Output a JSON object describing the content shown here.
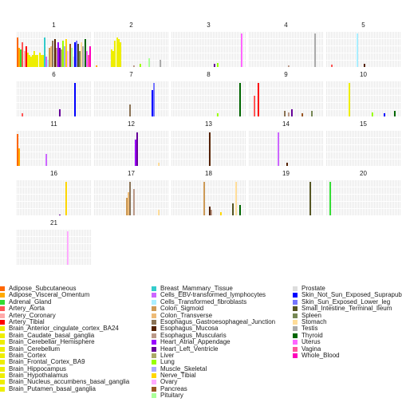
{
  "chart_data": {
    "type": "bar",
    "facets": [
      {
        "title": "1",
        "bars": [
          {
            "x": 1,
            "tissue": "Adipose_Subcutaneous",
            "value": 0.85
          },
          {
            "x": 2,
            "tissue": "Adipose_Visceral_Omentum",
            "value": 0.55
          },
          {
            "x": 3,
            "tissue": "Adrenal_Gland",
            "value": 0.5
          },
          {
            "x": 4,
            "tissue": "Artery_Aorta",
            "value": 0.7
          },
          {
            "x": 5,
            "tissue": "Artery_Coronary",
            "value": 0.45
          },
          {
            "x": 6,
            "tissue": "Artery_Tibial",
            "value": 0.6
          },
          {
            "x": 7,
            "tissue": "Brain_Anterior_cingulate_cortex_BA24",
            "value": 0.4
          },
          {
            "x": 8,
            "tissue": "Brain_Caudate_basal_ganglia",
            "value": 0.35
          },
          {
            "x": 9,
            "tissue": "Brain_Cerebellar_Hemisphere",
            "value": 0.3
          },
          {
            "x": 10,
            "tissue": "Brain_Cerebellum",
            "value": 0.35
          },
          {
            "x": 11,
            "tissue": "Brain_Cortex",
            "value": 0.45
          },
          {
            "x": 12,
            "tissue": "Brain_Frontal_Cortex_BA9",
            "value": 0.35
          },
          {
            "x": 13,
            "tissue": "Brain_Hippocampus",
            "value": 0.35
          },
          {
            "x": 14,
            "tissue": "Brain_Hypothalamus",
            "value": 0.4
          },
          {
            "x": 15,
            "tissue": "Brain_Nucleus_accumbens_basal_ganglia",
            "value": 0.35
          },
          {
            "x": 16,
            "tissue": "Brain_Putamen_basal_ganglia",
            "value": 0.35
          },
          {
            "x": 17,
            "tissue": "Breast_Mammary_Tissue",
            "value": 0.85
          },
          {
            "x": 18,
            "tissue": "Cells_EBV-transformed_lymphocytes",
            "value": 0.3
          },
          {
            "x": 19,
            "tissue": "Cells_Transformed_fibroblasts",
            "value": 0.2
          },
          {
            "x": 20,
            "tissue": "Colon_Sigmoid",
            "value": 0.55
          },
          {
            "x": 21,
            "tissue": "Colon_Transverse",
            "value": 0.6
          },
          {
            "x": 22,
            "tissue": "Esophagus_Gastroesophageal_Junction",
            "value": 0.75
          },
          {
            "x": 23,
            "tissue": "Esophagus_Mucosa",
            "value": 0.8
          },
          {
            "x": 24,
            "tissue": "Esophagus_Muscularis",
            "value": 0.55
          },
          {
            "x": 25,
            "tissue": "Heart_Atrial_Appendage",
            "value": 0.7
          },
          {
            "x": 26,
            "tissue": "Heart_Left_Ventricle",
            "value": 0.55
          },
          {
            "x": 27,
            "tissue": "Liver",
            "value": 0.5
          },
          {
            "x": 28,
            "tissue": "Lung",
            "value": 0.75
          },
          {
            "x": 29,
            "tissue": "Muscle_Skeletal",
            "value": 0.6
          },
          {
            "x": 30,
            "tissue": "Nerve_Tibial",
            "value": 0.8
          },
          {
            "x": 31,
            "tissue": "Ovary",
            "value": 0.45
          },
          {
            "x": 32,
            "tissue": "Pancreas",
            "value": 0.65
          },
          {
            "x": 33,
            "tissue": "Pituitary",
            "value": 0.55
          },
          {
            "x": 34,
            "tissue": "Prostate",
            "value": 0.3
          },
          {
            "x": 35,
            "tissue": "Skin_Not_Sun_Exposed_Suprapubic",
            "value": 0.7
          },
          {
            "x": 36,
            "tissue": "Skin_Sun_Exposed_Lower_leg",
            "value": 0.75
          },
          {
            "x": 37,
            "tissue": "Small_Intestine_Terminal_Ileum",
            "value": 0.65
          },
          {
            "x": 38,
            "tissue": "Spleen",
            "value": 0.45
          },
          {
            "x": 39,
            "tissue": "Stomach",
            "value": 0.7
          },
          {
            "x": 40,
            "tissue": "Testis",
            "value": 0.6
          },
          {
            "x": 41,
            "tissue": "Thyroid",
            "value": 0.8
          },
          {
            "x": 42,
            "tissue": "Uterus",
            "value": 0.45
          },
          {
            "x": 43,
            "tissue": "Vagina",
            "value": 0.35
          },
          {
            "x": 44,
            "tissue": "Whole_Blood",
            "value": 0.6
          }
        ]
      },
      {
        "title": "2",
        "bars": [
          {
            "x": 13,
            "tissue": "Brain_Hippocampus",
            "value": 0.75
          },
          {
            "x": 14,
            "tissue": "Brain_Hypothalamus",
            "value": 0.85
          },
          {
            "x": 15,
            "tissue": "Brain_Nucleus_accumbens_basal_ganglia",
            "value": 0.8
          },
          {
            "x": 16,
            "tissue": "Brain_Putamen_basal_ganglia",
            "value": 0.7
          },
          {
            "x": 11,
            "tissue": "Brain_Cortex",
            "value": 0.5
          },
          {
            "x": 12,
            "tissue": "Brain_Frontal_Cortex_BA9",
            "value": 0.45
          },
          {
            "x": 2,
            "tissue": "Adipose_Visceral_Omentum",
            "value": 0.05
          },
          {
            "x": 24,
            "tissue": "Esophagus_Muscularis",
            "value": 0.05
          },
          {
            "x": 28,
            "tissue": "Lung",
            "value": 0.1
          },
          {
            "x": 33,
            "tissue": "Pituitary",
            "value": 0.25
          },
          {
            "x": 40,
            "tissue": "Testis",
            "value": 0.2
          }
        ]
      },
      {
        "title": "3",
        "bars": [
          {
            "x": 26,
            "tissue": "Heart_Left_Ventricle",
            "value": 0.1
          },
          {
            "x": 28,
            "tissue": "Lung",
            "value": 0.12
          },
          {
            "x": 42,
            "tissue": "Uterus",
            "value": 0.95
          }
        ]
      },
      {
        "title": "4",
        "bars": [
          {
            "x": 24,
            "tissue": "Esophagus_Muscularis",
            "value": 0.05
          },
          {
            "x": 40,
            "tissue": "Testis",
            "value": 0.95
          }
        ]
      },
      {
        "title": "5",
        "bars": [
          {
            "x": 19,
            "tissue": "Cells_Transformed_fibroblasts",
            "value": 0.95
          },
          {
            "x": 23,
            "tissue": "Esophagus_Mucosa",
            "value": 0.1
          },
          {
            "x": 4,
            "tissue": "Artery_Aorta",
            "value": 0.07
          }
        ]
      },
      {
        "title": "6",
        "bars": [
          {
            "x": 4,
            "tissue": "Artery_Aorta",
            "value": 0.1
          },
          {
            "x": 26,
            "tissue": "Heart_Left_Ventricle",
            "value": 0.2
          },
          {
            "x": 35,
            "tissue": "Skin_Not_Sun_Exposed_Suprapubic",
            "value": 0.95
          }
        ]
      },
      {
        "title": "7",
        "bars": [
          {
            "x": 22,
            "tissue": "Esophagus_Gastroesophageal_Junction",
            "value": 0.35
          },
          {
            "x": 35,
            "tissue": "Skin_Not_Sun_Exposed_Suprapubic",
            "value": 0.75
          },
          {
            "x": 36,
            "tissue": "Skin_Sun_Exposed_Lower_leg",
            "value": 0.95
          }
        ]
      },
      {
        "title": "8",
        "bars": [
          {
            "x": 28,
            "tissue": "Lung",
            "value": 0.1
          },
          {
            "x": 41,
            "tissue": "Thyroid",
            "value": 0.95
          }
        ]
      },
      {
        "title": "9",
        "bars": [
          {
            "x": 4,
            "tissue": "Artery_Aorta",
            "value": 0.6
          },
          {
            "x": 6,
            "tissue": "Artery_Tibial",
            "value": 0.95
          },
          {
            "x": 22,
            "tissue": "Esophagus_Gastroesophageal_Junction",
            "value": 0.15
          },
          {
            "x": 24,
            "tissue": "Esophagus_Muscularis",
            "value": 0.12
          },
          {
            "x": 26,
            "tissue": "Heart_Left_Ventricle",
            "value": 0.2
          },
          {
            "x": 32,
            "tissue": "Pancreas",
            "value": 0.1
          },
          {
            "x": 38,
            "tissue": "Spleen",
            "value": 0.15
          }
        ]
      },
      {
        "title": "10",
        "bars": [
          {
            "x": 14,
            "tissue": "Brain_Hypothalamus",
            "value": 0.95
          },
          {
            "x": 35,
            "tissue": "Skin_Not_Sun_Exposed_Suprapubic",
            "value": 0.1
          },
          {
            "x": 28,
            "tissue": "Lung",
            "value": 0.12
          },
          {
            "x": 41,
            "tissue": "Thyroid",
            "value": 0.15
          }
        ]
      },
      {
        "title": "11",
        "bars": [
          {
            "x": 1,
            "tissue": "Adipose_Subcutaneous",
            "value": 0.9
          },
          {
            "x": 2,
            "tissue": "Adipose_Visceral_Omentum",
            "value": 0.5
          },
          {
            "x": 18,
            "tissue": "Cells_EBV-transformed_lymphocytes",
            "value": 0.35
          }
        ]
      },
      {
        "title": "12",
        "bars": [
          {
            "x": 25,
            "tissue": "Heart_Atrial_Appendage",
            "value": 0.75
          },
          {
            "x": 26,
            "tissue": "Heart_Left_Ventricle",
            "value": 0.95
          },
          {
            "x": 39,
            "tissue": "Stomach",
            "value": 0.1
          }
        ]
      },
      {
        "title": "13",
        "bars": [
          {
            "x": 23,
            "tissue": "Esophagus_Mucosa",
            "value": 0.95
          }
        ]
      },
      {
        "title": "14",
        "bars": [
          {
            "x": 18,
            "tissue": "Cells_EBV-transformed_lymphocytes",
            "value": 0.95
          },
          {
            "x": 23,
            "tissue": "Esophagus_Mucosa",
            "value": 0.1
          }
        ]
      },
      {
        "title": "15",
        "bars": []
      },
      {
        "title": "16",
        "bars": [
          {
            "x": 30,
            "tissue": "Nerve_Tibial",
            "value": 0.95
          },
          {
            "x": 26,
            "tissue": "Heart_Left_Ventricle",
            "value": 0.03
          }
        ]
      },
      {
        "title": "17",
        "bars": [
          {
            "x": 20,
            "tissue": "Colon_Sigmoid",
            "value": 0.5
          },
          {
            "x": 21,
            "tissue": "Colon_Transverse",
            "value": 0.65
          },
          {
            "x": 24,
            "tissue": "Esophagus_Muscularis",
            "value": 0.75
          },
          {
            "x": 22,
            "tissue": "Esophagus_Gastroesophageal_Junction",
            "value": 0.95
          },
          {
            "x": 39,
            "tissue": "Stomach",
            "value": 0.15
          }
        ]
      },
      {
        "title": "18",
        "bars": [
          {
            "x": 20,
            "tissue": "Colon_Sigmoid",
            "value": 0.95
          },
          {
            "x": 23,
            "tissue": "Esophagus_Mucosa",
            "value": 0.25
          },
          {
            "x": 30,
            "tissue": "Nerve_Tibial",
            "value": 0.1
          },
          {
            "x": 24,
            "tissue": "Esophagus_Muscularis",
            "value": 0.15
          },
          {
            "x": 37,
            "tissue": "Small_Intestine_Terminal_Ileum",
            "value": 0.35
          },
          {
            "x": 39,
            "tissue": "Stomach",
            "value": 0.95
          },
          {
            "x": 41,
            "tissue": "Thyroid",
            "value": 0.3
          }
        ]
      },
      {
        "title": "19",
        "bars": [
          {
            "x": 37,
            "tissue": "Small_Intestine_Terminal_Ileum",
            "value": 0.95
          }
        ]
      },
      {
        "title": "20",
        "bars": [
          {
            "x": 3,
            "tissue": "Adrenal_Gland",
            "value": 0.95
          }
        ]
      },
      {
        "title": "21",
        "bars": [
          {
            "x": 31,
            "tissue": "Ovary",
            "value": 0.95
          }
        ]
      }
    ],
    "ylim": [
      0,
      1
    ],
    "legend": {
      "placement": "bottom",
      "entries": [
        {
          "label": "Adipose_Subcutaneous",
          "color": "#ff6600"
        },
        {
          "label": "Adipose_Visceral_Omentum",
          "color": "#ffaa00"
        },
        {
          "label": "Adrenal_Gland",
          "color": "#33dd33"
        },
        {
          "label": "Artery_Aorta",
          "color": "#ff5555"
        },
        {
          "label": "Artery_Coronary",
          "color": "#ffaaaa"
        },
        {
          "label": "Artery_Tibial",
          "color": "#ff0000"
        },
        {
          "label": "Brain_Anterior_cingulate_cortex_BA24",
          "color": "#eeee00"
        },
        {
          "label": "Brain_Caudate_basal_ganglia",
          "color": "#eeee00"
        },
        {
          "label": "Brain_Cerebellar_Hemisphere",
          "color": "#eeee00"
        },
        {
          "label": "Brain_Cerebellum",
          "color": "#eeee00"
        },
        {
          "label": "Brain_Cortex",
          "color": "#eeee00"
        },
        {
          "label": "Brain_Frontal_Cortex_BA9",
          "color": "#eeee00"
        },
        {
          "label": "Brain_Hippocampus",
          "color": "#eeee00"
        },
        {
          "label": "Brain_Hypothalamus",
          "color": "#eeee00"
        },
        {
          "label": "Brain_Nucleus_accumbens_basal_ganglia",
          "color": "#eeee00"
        },
        {
          "label": "Brain_Putamen_basal_ganglia",
          "color": "#eeee00"
        },
        {
          "label": "Breast_Mammary_Tissue",
          "color": "#33cccc"
        },
        {
          "label": "Cells_EBV-transformed_lymphocytes",
          "color": "#cc66ff"
        },
        {
          "label": "Cells_Transformed_fibroblasts",
          "color": "#aaeeff"
        },
        {
          "label": "Colon_Sigmoid",
          "color": "#cc9955"
        },
        {
          "label": "Colon_Transverse",
          "color": "#eebb77"
        },
        {
          "label": "Esophagus_Gastroesophageal_Junction",
          "color": "#8b7355"
        },
        {
          "label": "Esophagus_Mucosa",
          "color": "#552200"
        },
        {
          "label": "Esophagus_Muscularis",
          "color": "#bb9988"
        },
        {
          "label": "Heart_Atrial_Appendage",
          "color": "#9900ff"
        },
        {
          "label": "Heart_Left_Ventricle",
          "color": "#660099"
        },
        {
          "label": "Liver",
          "color": "#aaaa66"
        },
        {
          "label": "Lung",
          "color": "#99ff00"
        },
        {
          "label": "Muscle_Skeletal",
          "color": "#aaaaff"
        },
        {
          "label": "Nerve_Tibial",
          "color": "#ffd700"
        },
        {
          "label": "Ovary",
          "color": "#ffaaff"
        },
        {
          "label": "Pancreas",
          "color": "#995522"
        },
        {
          "label": "Pituitary",
          "color": "#aaff99"
        },
        {
          "label": "Prostate",
          "color": "#dddddd"
        },
        {
          "label": "Skin_Not_Sun_Exposed_Suprapubic",
          "color": "#0000ff"
        },
        {
          "label": "Skin_Sun_Exposed_Lower_leg",
          "color": "#7777ff"
        },
        {
          "label": "Small_Intestine_Terminal_Ileum",
          "color": "#555522"
        },
        {
          "label": "Spleen",
          "color": "#778855"
        },
        {
          "label": "Stomach",
          "color": "#ffdd99"
        },
        {
          "label": "Testis",
          "color": "#aaaaaa"
        },
        {
          "label": "Thyroid",
          "color": "#006600"
        },
        {
          "label": "Uterus",
          "color": "#ff66ff"
        },
        {
          "label": "Vagina",
          "color": "#ff5599"
        },
        {
          "label": "Whole_Blood",
          "color": "#ff00bb"
        }
      ]
    }
  }
}
